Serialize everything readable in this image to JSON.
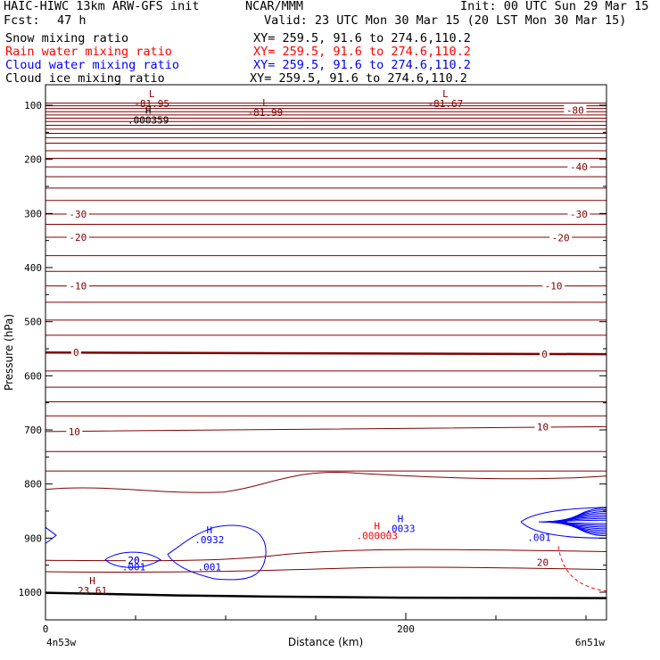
{
  "header": {
    "title": "HAIC-HIWC 13km ARW-GFS init",
    "org": "NCAR/MMM",
    "init": "Init: 00 UTC Sun 29 Mar 15",
    "fcst_label": "Fcst:",
    "fcst_value": "47 h",
    "valid": "Valid: 23 UTC Mon 30 Mar 15 (20 LST Mon 30 Mar 15)",
    "fields": [
      {
        "name": "Snow mixing ratio",
        "xy": "XY= 259.5, 91.6 to 274.6,110.2",
        "color": "#000000"
      },
      {
        "name": "Rain water mixing ratio",
        "xy": "XY= 259.5, 91.6 to 274.6,110.2",
        "color": "#ff0000"
      },
      {
        "name": "Cloud water mixing ratio",
        "xy": "XY= 259.5, 91.6 to 274.6,110.2",
        "color": "#0000ff"
      },
      {
        "name": "Cloud ice mixing ratio",
        "xy": "XY= 259.5, 91.6 to 274.6,110.2",
        "color": "#000000"
      }
    ]
  },
  "chart_data": {
    "type": "contour",
    "xlabel": "Distance (km)",
    "ylabel": "Pressure (hPa)",
    "xlim": [
      0,
      310
    ],
    "ylim": [
      1050,
      50
    ],
    "x_ticks": [
      0,
      200
    ],
    "y_ticks": [
      100,
      200,
      300,
      400,
      500,
      600,
      700,
      800,
      900,
      1000
    ],
    "x_endpoint_labels": {
      "left": "4n53w",
      "right": "6n51w"
    },
    "colors": {
      "temperature": "#800000",
      "cloud_water": "#0000ff",
      "rain": "#ff0000",
      "terrain": "#000000"
    },
    "temperature_contours": [
      {
        "label": "-80",
        "x": 294,
        "p": 109
      },
      {
        "label": "-40",
        "x": 296,
        "p": 214
      },
      {
        "label": "-30",
        "x": 18,
        "p": 301
      },
      {
        "label": "-30",
        "x": 296,
        "p": 301
      },
      {
        "label": "-20",
        "x": 18,
        "p": 344
      },
      {
        "label": "-20",
        "x": 286,
        "p": 345
      },
      {
        "label": "-10",
        "x": 18,
        "p": 434
      },
      {
        "label": "-10",
        "x": 282,
        "p": 434
      },
      {
        "label": "0",
        "x": 17,
        "p": 557
      },
      {
        "label": "0",
        "x": 277,
        "p": 560
      },
      {
        "label": "10",
        "x": 16,
        "p": 703
      },
      {
        "label": "10",
        "x": 276,
        "p": 694
      },
      {
        "label": "20",
        "x": 276,
        "p": 945
      },
      {
        "label": "20",
        "x": 49,
        "p": 941
      }
    ],
    "extrema": [
      {
        "type": "L",
        "value": "-81.95",
        "x": 59,
        "p": 85,
        "series": "temperature"
      },
      {
        "type": "L",
        "value": "-81.99",
        "x": 122,
        "p": 102,
        "series": "temperature"
      },
      {
        "type": "L",
        "value": "-81.67",
        "x": 222,
        "p": 85,
        "series": "temperature"
      },
      {
        "type": "H",
        "value": ".000359",
        "x": 57,
        "p": 116,
        "series": "snow"
      },
      {
        "type": "H",
        "value": ".0932",
        "x": 91,
        "p": 891,
        "series": "cloud_water"
      },
      {
        "type": "H",
        "value": ".0033",
        "x": 197,
        "p": 871,
        "series": "cloud_water"
      },
      {
        "type": "H",
        "value": ".000003",
        "x": 184,
        "p": 884,
        "series": "rain"
      },
      {
        "type": "H",
        "value": "23.61",
        "x": 26,
        "p": 985,
        "series": "temperature"
      }
    ],
    "cloud_water_labels": [
      {
        "label": ".001",
        "x": 49,
        "p": 953
      },
      {
        "label": ".001",
        "x": 91,
        "p": 953
      },
      {
        "label": "20",
        "x": 49,
        "p": 941
      },
      {
        "label": ".001",
        "x": 274,
        "p": 899
      }
    ]
  }
}
